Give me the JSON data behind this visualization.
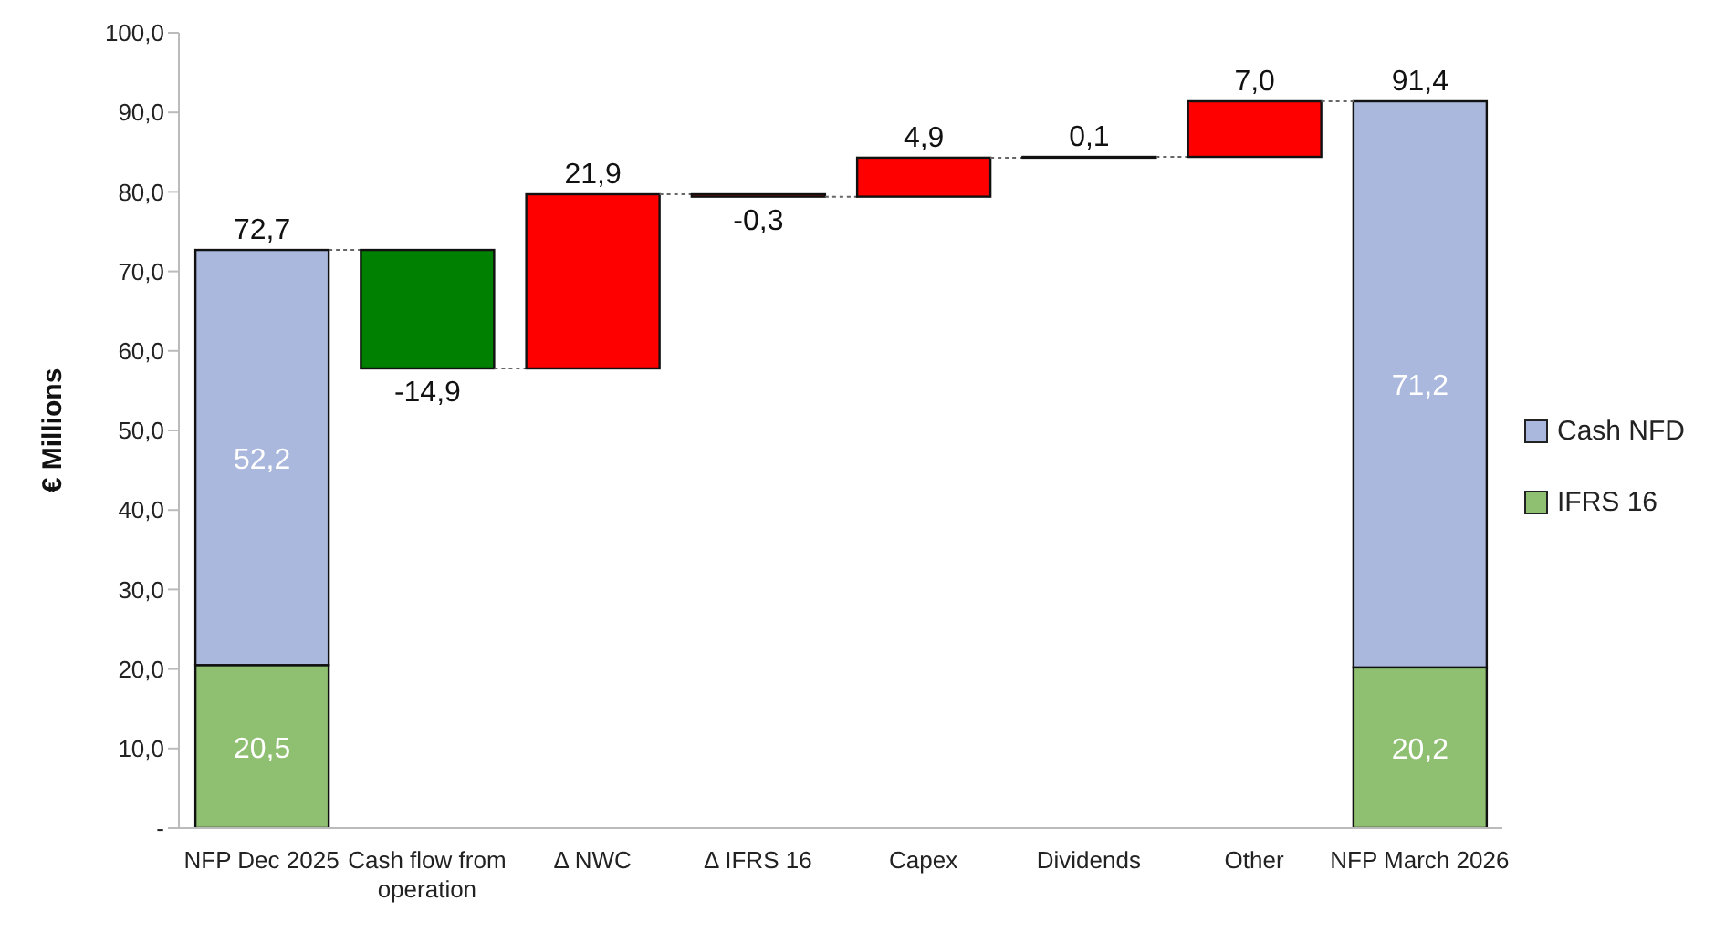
{
  "chart_data": {
    "type": "bar",
    "ylabel": "€ Millions",
    "categories": [
      "NFP Dec 2025",
      "Cash flow from operation",
      "Δ NWC",
      "Δ IFRS 16",
      "Capex",
      "Dividends",
      "Other",
      "NFP March 2026"
    ],
    "stacked": true,
    "legend": "right",
    "ylim": [
      0,
      100
    ],
    "yticks": [
      {
        "value": 0,
        "label": "-"
      },
      {
        "value": 10,
        "label": "10,0"
      },
      {
        "value": 20,
        "label": "20,0"
      },
      {
        "value": 30,
        "label": "30,0"
      },
      {
        "value": 40,
        "label": "40,0"
      },
      {
        "value": 50,
        "label": "50,0"
      },
      {
        "value": 60,
        "label": "60,0"
      },
      {
        "value": 70,
        "label": "70,0"
      },
      {
        "value": 80,
        "label": "80,0"
      },
      {
        "value": 90,
        "label": "90,0"
      },
      {
        "value": 100,
        "label": "100,0"
      }
    ],
    "series": [
      {
        "name": "IFRS 16",
        "color": "#8fbf70",
        "values": [
          20.5,
          null,
          null,
          null,
          null,
          null,
          null,
          20.2
        ],
        "value_labels": [
          "20,5",
          null,
          null,
          null,
          null,
          null,
          null,
          "20,2"
        ]
      },
      {
        "name": "Cash NFD",
        "color": "#aab8dd",
        "values": [
          52.2,
          null,
          null,
          null,
          null,
          null,
          null,
          71.2
        ],
        "value_labels": [
          "52,2",
          null,
          null,
          null,
          null,
          null,
          null,
          "71,2"
        ]
      },
      {
        "colors": [
          null,
          "#008000",
          "#ff0000",
          "#ff0000",
          "#ff0000",
          "#ff0000",
          "#ff0000",
          null
        ],
        "values": [
          null,
          -14.9,
          21.9,
          -0.3,
          4.9,
          0.1,
          7.0,
          null
        ],
        "base": [
          null,
          72.7,
          57.8,
          79.7,
          79.4,
          84.3,
          84.4,
          null
        ],
        "value_labels": [
          null,
          "-14,9",
          "21,9",
          "-0,3",
          "4,9",
          "0,1",
          "7,0",
          null
        ]
      }
    ],
    "totals": [
      "72,7",
      null,
      null,
      null,
      null,
      null,
      null,
      "91,4"
    ]
  }
}
